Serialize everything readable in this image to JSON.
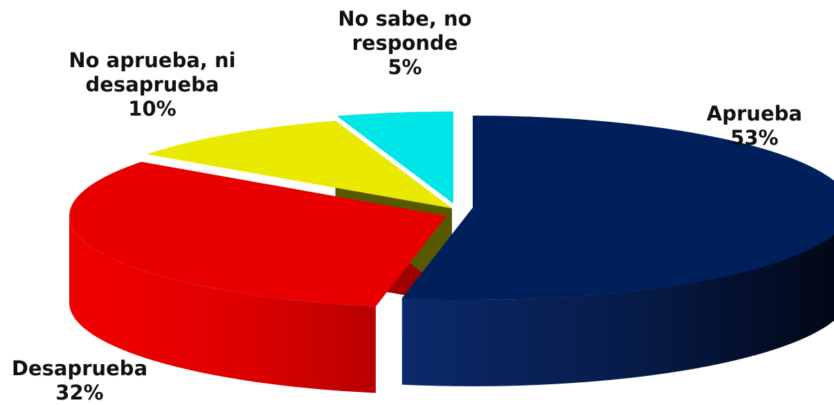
{
  "chart_data": {
    "type": "pie",
    "style": "3d-exploded",
    "slices": [
      {
        "label_lines": [
          "Aprueba"
        ],
        "value_text": "53%",
        "value": 53,
        "color": "#00205c"
      },
      {
        "label_lines": [
          "Desaprueba"
        ],
        "value_text": "32%",
        "value": 32,
        "color": "#e80000"
      },
      {
        "label_lines": [
          "No aprueba, ni",
          "desaprueba"
        ],
        "value_text": "10%",
        "value": 10,
        "color": "#eaea00"
      },
      {
        "label_lines": [
          "No sabe, no",
          "responde"
        ],
        "value_text": "5%",
        "value": 5,
        "color": "#00e6e6"
      }
    ]
  }
}
